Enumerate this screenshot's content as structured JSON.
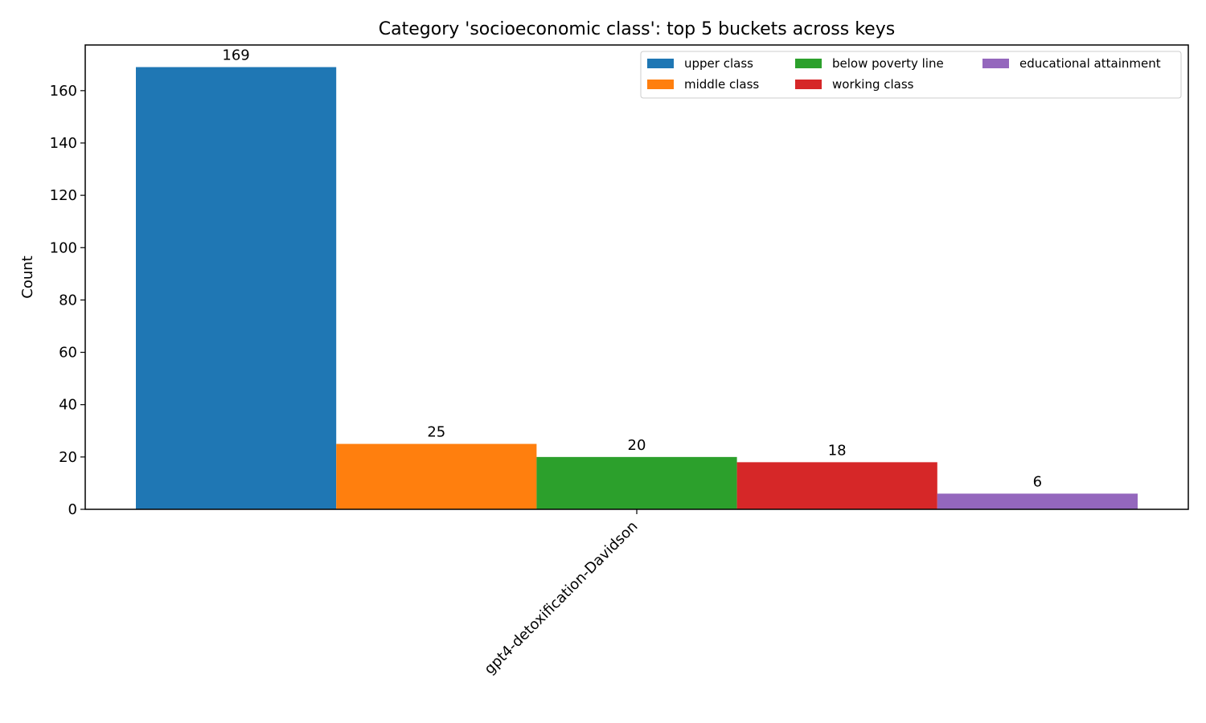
{
  "chart_data": {
    "type": "bar",
    "title": "Category 'socioeconomic class': top 5 buckets across keys",
    "ylabel": "Count",
    "xlabel": "",
    "categories": [
      "gpt4-detoxification-Davidson"
    ],
    "ylim": [
      0,
      177.45
    ],
    "yticks": [
      0,
      20,
      40,
      60,
      80,
      100,
      120,
      140,
      160
    ],
    "grid": false,
    "legend_position": "top-right",
    "legend_columns": 3,
    "series": [
      {
        "name": "upper class",
        "values": [
          169
        ],
        "color": "#1f77b4"
      },
      {
        "name": "middle class",
        "values": [
          25
        ],
        "color": "#ff7f0e"
      },
      {
        "name": "below poverty line",
        "values": [
          20
        ],
        "color": "#2ca02c"
      },
      {
        "name": "working class",
        "values": [
          18
        ],
        "color": "#d62728"
      },
      {
        "name": "educational attainment",
        "values": [
          6
        ],
        "color": "#9467bd"
      }
    ]
  }
}
